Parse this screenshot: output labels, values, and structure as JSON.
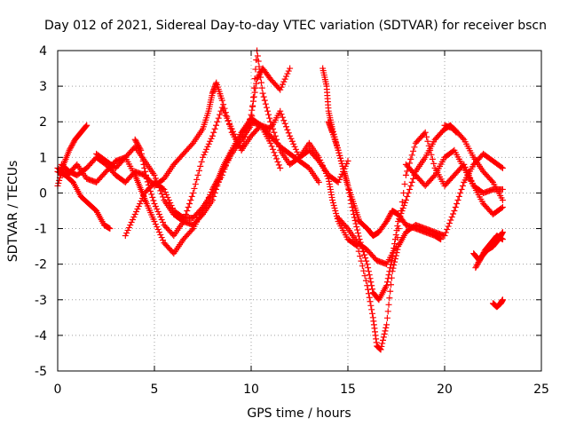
{
  "chart_data": {
    "type": "scatter",
    "title": "Day 012 of 2021, Sidereal Day-to-day VTEC variation (SDTVAR) for receiver bscn",
    "xlabel": "GPS time / hours",
    "ylabel": "SDTVAR / TECUs",
    "xlim": [
      0,
      25
    ],
    "ylim": [
      -5,
      4
    ],
    "xticks": [
      0,
      5,
      10,
      15,
      20,
      25
    ],
    "yticks": [
      -5,
      -4,
      -3,
      -2,
      -1,
      0,
      1,
      2,
      3,
      4
    ],
    "grid": true,
    "marker": "plus",
    "color": "#ff0000",
    "series": [
      {
        "x": [
          0.0,
          0.3,
          0.6,
          0.9,
          1.2,
          1.5
        ],
        "y": [
          0.2,
          0.8,
          1.2,
          1.5,
          1.7,
          1.9
        ]
      },
      {
        "x": [
          0.0,
          0.4,
          0.8,
          1.2,
          1.6,
          2.0,
          2.4,
          2.7
        ],
        "y": [
          0.6,
          0.5,
          0.3,
          -0.1,
          -0.3,
          -0.5,
          -0.9,
          -1.0
        ]
      },
      {
        "x": [
          0.0,
          0.5,
          1.0,
          1.5,
          2.0,
          2.5,
          3.0,
          3.5,
          4.0,
          4.3,
          4.6,
          5.0,
          5.5,
          6.0,
          6.5,
          7.0,
          7.5,
          8.0,
          8.3,
          8.6,
          9.0,
          9.5,
          10.0,
          10.5,
          11.0,
          11.5,
          12.0,
          12.5,
          13.0,
          13.5
        ],
        "y": [
          0.7,
          0.5,
          0.8,
          0.4,
          0.3,
          0.6,
          0.9,
          1.0,
          0.5,
          0.1,
          -0.3,
          -0.8,
          -1.4,
          -1.7,
          -1.3,
          -1.0,
          -0.5,
          0.1,
          0.4,
          0.8,
          1.2,
          1.7,
          2.0,
          1.9,
          1.6,
          1.3,
          1.1,
          0.9,
          0.7,
          0.3
        ]
      },
      {
        "x": [
          0.2,
          0.6,
          1.0,
          1.5,
          2.0,
          2.5,
          3.0,
          3.5,
          4.0,
          4.5,
          5.0,
          5.5,
          6.0,
          6.5,
          7.0,
          7.5,
          7.8,
          8.0,
          8.2,
          8.5,
          9.0,
          9.5,
          10.0,
          10.3,
          10.6,
          11.0,
          11.5,
          12.0
        ],
        "y": [
          0.8,
          0.6,
          0.5,
          0.7,
          1.0,
          0.8,
          0.5,
          0.3,
          0.6,
          0.5,
          0.2,
          0.4,
          0.8,
          1.1,
          1.4,
          1.8,
          2.3,
          2.8,
          3.1,
          2.6,
          1.7,
          1.2,
          2.2,
          3.2,
          3.5,
          3.2,
          2.9,
          3.5
        ]
      },
      {
        "x": [
          2.0,
          2.5,
          3.0,
          3.5,
          4.0,
          4.5,
          5.0,
          5.5,
          6.0,
          6.5,
          7.0,
          7.5,
          8.0,
          8.5,
          9.0,
          9.5,
          10.0,
          10.3,
          10.6,
          11.0,
          11.5,
          12.0,
          12.5,
          13.0,
          13.5,
          14.0,
          14.5,
          15.0
        ],
        "y": [
          1.1,
          0.9,
          0.7,
          1.0,
          1.3,
          0.9,
          0.5,
          -0.2,
          -0.6,
          -0.8,
          -0.9,
          -0.6,
          -0.2,
          0.6,
          1.1,
          1.5,
          1.9,
          4.0,
          2.8,
          2.0,
          1.2,
          0.8,
          1.0,
          1.2,
          0.9,
          0.5,
          0.3,
          0.9
        ]
      },
      {
        "x": [
          3.5,
          4.0,
          4.5,
          5.0,
          5.5,
          6.0,
          6.5,
          7.0,
          7.5,
          8.0,
          8.5,
          9.0,
          9.5,
          10.0,
          10.5,
          11.0,
          11.5,
          12.0,
          12.5,
          13.0,
          13.5,
          14.0
        ],
        "y": [
          -1.2,
          -0.6,
          0.0,
          0.3,
          0.1,
          -0.5,
          -0.7,
          -0.7,
          -0.4,
          0.0,
          0.5,
          1.2,
          1.7,
          2.1,
          1.9,
          1.8,
          2.3,
          1.6,
          1.0,
          1.4,
          1.0,
          0.4
        ]
      },
      {
        "x": [
          4.0,
          4.3,
          4.6,
          5.0,
          5.5,
          6.0,
          6.5,
          7.0,
          7.5,
          8.0,
          8.5,
          9.0,
          9.5,
          10.0,
          10.5,
          11.0,
          11.5
        ],
        "y": [
          1.5,
          1.2,
          0.4,
          -0.3,
          -0.9,
          -1.2,
          -0.8,
          0.0,
          1.0,
          1.6,
          2.4,
          1.8,
          1.2,
          1.6,
          1.9,
          1.4,
          0.7
        ]
      },
      {
        "x": [
          13.7,
          13.9,
          14.0,
          14.2,
          14.5,
          14.8,
          15.0,
          15.3,
          15.6,
          16.0,
          16.3,
          16.6,
          17.0,
          17.3,
          17.6,
          18.0,
          18.5,
          19.0,
          19.5,
          19.8
        ],
        "y": [
          3.5,
          3.0,
          2.3,
          1.8,
          1.2,
          0.6,
          0.2,
          -0.3,
          -0.8,
          -1.0,
          -1.2,
          -1.1,
          -0.8,
          -0.5,
          -0.6,
          -0.9,
          -1.0,
          -1.1,
          -1.2,
          -1.3
        ]
      },
      {
        "x": [
          14.0,
          14.2,
          14.5,
          14.8,
          15.0,
          15.3,
          15.6,
          16.0,
          16.3,
          16.6,
          17.0,
          17.3,
          17.6,
          18.0,
          18.5,
          19.0,
          19.5,
          20.0,
          20.3,
          20.6
        ],
        "y": [
          2.0,
          1.7,
          1.2,
          0.6,
          0.2,
          -0.6,
          -1.3,
          -2.0,
          -2.8,
          -3.0,
          -2.6,
          -1.8,
          -0.8,
          -0.2,
          0.6,
          1.0,
          1.5,
          1.8,
          1.9,
          1.7
        ]
      },
      {
        "x": [
          14.0,
          14.2,
          14.5,
          15.0,
          15.5,
          16.0,
          16.3,
          16.5,
          16.7,
          17.0,
          17.3,
          17.6,
          18.0,
          18.5,
          19.0,
          19.5,
          20.0,
          20.5,
          21.0,
          21.5,
          22.0,
          22.5,
          23.0
        ],
        "y": [
          0.4,
          -0.2,
          -0.8,
          -1.3,
          -1.5,
          -2.6,
          -3.5,
          -4.3,
          -4.4,
          -3.7,
          -2.2,
          -1.5,
          -1.1,
          -0.9,
          -1.0,
          -1.1,
          -1.2,
          -0.5,
          0.3,
          0.8,
          1.1,
          0.9,
          0.7
        ]
      },
      {
        "x": [
          14.5,
          15.0,
          15.5,
          16.0,
          16.5,
          17.0,
          17.5,
          18.0,
          18.5,
          19.0,
          19.5,
          20.0,
          20.5,
          21.0,
          21.5,
          22.0,
          22.5,
          23.0
        ],
        "y": [
          -0.7,
          -1.0,
          -1.4,
          -1.6,
          -1.9,
          -2.0,
          -1.5,
          0.5,
          1.4,
          1.7,
          0.7,
          0.2,
          0.5,
          0.8,
          0.2,
          0.0,
          0.1,
          0.1
        ]
      },
      {
        "x": [
          18.0,
          18.5,
          19.0,
          19.5,
          20.0,
          20.5,
          21.0,
          21.5,
          22.0,
          22.5,
          23.0
        ],
        "y": [
          0.8,
          0.5,
          0.2,
          0.5,
          1.0,
          1.2,
          0.7,
          0.2,
          -0.3,
          -0.6,
          -0.4
        ]
      },
      {
        "x": [
          20.0,
          20.5,
          21.0,
          21.5,
          22.0,
          22.5,
          23.0
        ],
        "y": [
          1.9,
          1.8,
          1.5,
          1.0,
          0.6,
          0.3,
          -0.2
        ]
      },
      {
        "x": [
          21.5,
          21.8,
          22.1,
          22.4,
          22.7,
          23.0
        ],
        "y": [
          -1.7,
          -1.9,
          -1.6,
          -1.4,
          -1.2,
          -1.3
        ]
      },
      {
        "x": [
          21.6,
          21.9,
          22.2,
          22.5,
          22.8,
          23.0
        ],
        "y": [
          -2.1,
          -1.8,
          -1.6,
          -1.5,
          -1.3,
          -1.1
        ]
      },
      {
        "x": [
          22.5,
          22.7,
          22.9,
          23.0
        ],
        "y": [
          -3.1,
          -3.2,
          -3.1,
          -3.0
        ]
      }
    ]
  }
}
